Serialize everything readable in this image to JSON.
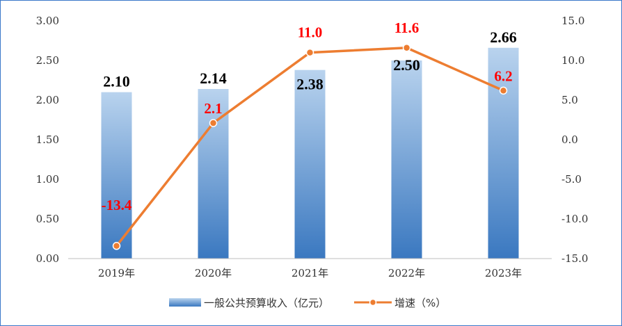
{
  "chart_data": {
    "type": "bar",
    "categories": [
      "2019年",
      "2020年",
      "2021年",
      "2022年",
      "2023年"
    ],
    "series": [
      {
        "name": "一般公共预算收入（亿元）",
        "type": "bar",
        "axis": "left",
        "values": [
          2.1,
          2.14,
          2.38,
          2.5,
          2.66
        ],
        "labels": [
          "2.10",
          "2.14",
          "2.38",
          "2.50",
          "2.66"
        ]
      },
      {
        "name": "增速（%）",
        "type": "line",
        "axis": "right",
        "values": [
          -13.4,
          2.1,
          11.0,
          11.6,
          6.2
        ],
        "labels": [
          "-13.4",
          "2.1",
          "11.0",
          "11.6",
          "6.2"
        ]
      }
    ],
    "y_left": {
      "ylim": [
        0,
        3.0
      ],
      "ticks": [
        "0.00",
        "0.50",
        "1.00",
        "1.50",
        "2.00",
        "2.50",
        "3.00"
      ]
    },
    "y_right": {
      "ylim": [
        -15,
        15
      ],
      "ticks": [
        "-15.0",
        "-10.0",
        "-5.0",
        "0.0",
        "5.0",
        "10.0",
        "15.0"
      ]
    },
    "legend_position": "bottom",
    "grid": false
  },
  "colors": {
    "bar_top": "#b9d3ee",
    "bar_bottom": "#3a78c0",
    "line": "#ed7d31",
    "rate_label": "#ff0000",
    "bar_label": "#000000",
    "border": "#3a78c9"
  }
}
